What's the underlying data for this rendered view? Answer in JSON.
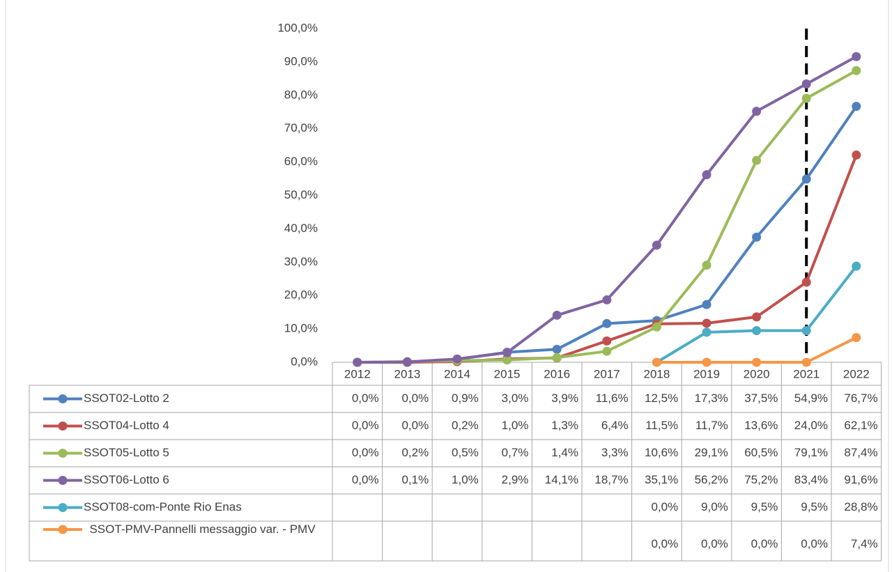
{
  "chart_data": {
    "type": "line",
    "categories": [
      "2012",
      "2013",
      "2014",
      "2015",
      "2016",
      "2017",
      "2018",
      "2019",
      "2020",
      "2021",
      "2022"
    ],
    "ylim": [
      0,
      100
    ],
    "yticks": [
      {
        "value": 0,
        "label": "0,0%"
      },
      {
        "value": 10,
        "label": "10,0%"
      },
      {
        "value": 20,
        "label": "20,0%"
      },
      {
        "value": 30,
        "label": "30,0%"
      },
      {
        "value": 40,
        "label": "40,0%"
      },
      {
        "value": 50,
        "label": "50,0%"
      },
      {
        "value": 60,
        "label": "60,0%"
      },
      {
        "value": 70,
        "label": "70,0%"
      },
      {
        "value": 80,
        "label": "80,0%"
      },
      {
        "value": 90,
        "label": "90,0%"
      },
      {
        "value": 100,
        "label": "100,0%"
      }
    ],
    "grid": false,
    "series": [
      {
        "name": "SSOT02-Lotto 2",
        "color": "#4f81bd",
        "values": [
          0,
          0,
          0.9,
          3.0,
          3.9,
          11.6,
          12.5,
          17.3,
          37.5,
          54.9,
          76.7
        ],
        "value_labels": [
          "0,0%",
          "0,0%",
          "0,9%",
          "3,0%",
          "3,9%",
          "11,6%",
          "12,5%",
          "17,3%",
          "37,5%",
          "54,9%",
          "76,7%"
        ]
      },
      {
        "name": "SSOT04-Lotto 4",
        "color": "#c0504d",
        "values": [
          0,
          0,
          0.2,
          1.0,
          1.3,
          6.4,
          11.5,
          11.7,
          13.6,
          24.0,
          62.1
        ],
        "value_labels": [
          "0,0%",
          "0,0%",
          "0,2%",
          "1,0%",
          "1,3%",
          "6,4%",
          "11,5%",
          "11,7%",
          "13,6%",
          "24,0%",
          "62,1%"
        ]
      },
      {
        "name": "SSOT05-Lotto 5",
        "color": "#9bbb59",
        "values": [
          0,
          0.2,
          0.5,
          0.7,
          1.4,
          3.3,
          10.6,
          29.1,
          60.5,
          79.1,
          87.4
        ],
        "value_labels": [
          "0,0%",
          "0,2%",
          "0,5%",
          "0,7%",
          "1,4%",
          "3,3%",
          "10,6%",
          "29,1%",
          "60,5%",
          "79,1%",
          "87,4%"
        ]
      },
      {
        "name": "SSOT06-Lotto 6",
        "color": "#8064a2",
        "values": [
          0,
          0.1,
          1.0,
          2.9,
          14.1,
          18.7,
          35.1,
          56.2,
          75.2,
          83.4,
          91.6
        ],
        "value_labels": [
          "0,0%",
          "0,1%",
          "1,0%",
          "2,9%",
          "14,1%",
          "18,7%",
          "35,1%",
          "56,2%",
          "75,2%",
          "83,4%",
          "91,6%"
        ]
      },
      {
        "name": "SSOT08-com-Ponte Rio Enas",
        "color": "#4bacc6",
        "values": [
          null,
          null,
          null,
          null,
          null,
          null,
          0,
          9.0,
          9.5,
          9.5,
          28.8
        ],
        "value_labels": [
          null,
          null,
          null,
          null,
          null,
          null,
          "0,0%",
          "9,0%",
          "9,5%",
          "9,5%",
          "28,8%"
        ]
      },
      {
        "name": "SSOT-PMV-Pannelli messaggio var. - PMV",
        "color": "#f79646",
        "values": [
          null,
          null,
          null,
          null,
          null,
          null,
          0,
          0,
          0,
          0,
          7.4
        ],
        "value_labels": [
          null,
          null,
          null,
          null,
          null,
          null,
          "0,0%",
          "0,0%",
          "0,0%",
          "0,0%",
          "7,4%"
        ]
      }
    ]
  }
}
